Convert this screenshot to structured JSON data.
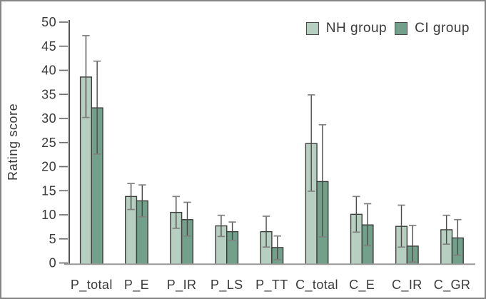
{
  "figure": {
    "background": "#ffffff",
    "border_color": "#858585"
  },
  "chart_data": {
    "type": "bar",
    "title": "",
    "xlabel": "",
    "ylabel": "Rating score",
    "ylim": [
      0,
      50
    ],
    "y_ticks": [
      0,
      5,
      10,
      15,
      20,
      25,
      30,
      35,
      40,
      45,
      50
    ],
    "grid": false,
    "legend_position": "top-right",
    "error_bars": true,
    "categories": [
      "P_total",
      "P_E",
      "P_IR",
      "P_LS",
      "P_TT",
      "C_total",
      "C_E",
      "C_IR",
      "C_GR"
    ],
    "series": [
      {
        "name": "NH group",
        "color": "#b7cfc1",
        "values": [
          38.6,
          13.8,
          10.5,
          7.7,
          6.5,
          24.8,
          10.1,
          7.6,
          6.9
        ],
        "error_low": [
          30.2,
          11.1,
          7.2,
          5.5,
          3.3,
          14.9,
          6.4,
          3.3,
          3.9
        ],
        "error_high": [
          47.2,
          16.5,
          13.8,
          9.9,
          9.7,
          34.9,
          13.8,
          12.0,
          9.9
        ]
      },
      {
        "name": "CI group",
        "color": "#72a08b",
        "values": [
          32.2,
          12.9,
          9.0,
          6.5,
          3.2,
          16.9,
          7.9,
          3.5,
          5.2
        ],
        "error_low": [
          22.6,
          9.6,
          5.6,
          4.7,
          0.7,
          5.4,
          3.6,
          0.2,
          1.6
        ],
        "error_high": [
          41.9,
          16.2,
          12.6,
          8.5,
          5.6,
          28.7,
          12.3,
          7.8,
          9.0
        ]
      }
    ],
    "colors": {
      "bar_outline": "#3c3c3c",
      "error_line": "#4a4a4a",
      "error_cap": "#808080",
      "y_axis": "#3f3f3f",
      "x_baseline": "#999999",
      "tick": "#6e6e6e",
      "text": "#3a3a3a"
    }
  }
}
